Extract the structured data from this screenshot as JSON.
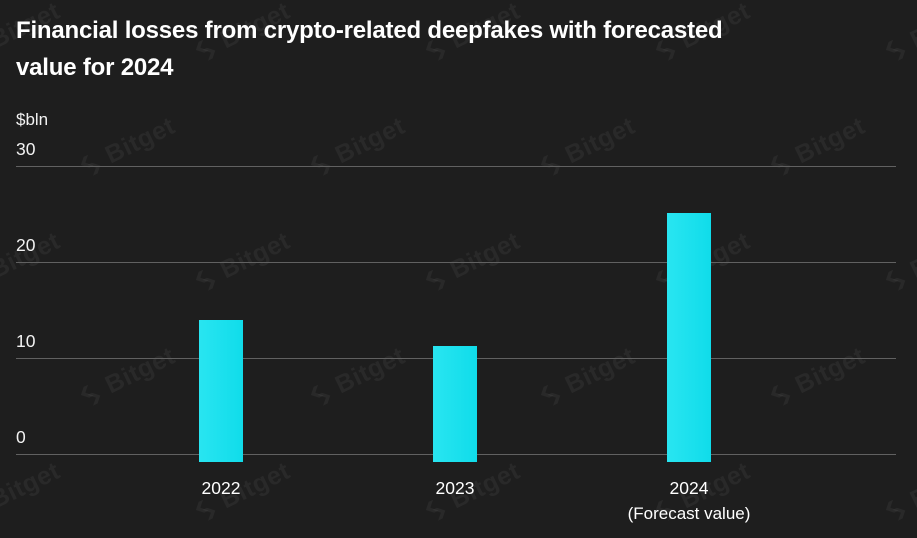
{
  "title": "Financial losses from crypto-related deepfakes with forecasted value for 2024",
  "y_axis": {
    "unit_label": "$bln"
  },
  "watermark": {
    "brand": "Bitget",
    "icon": "bitget-logo-icon"
  },
  "colors": {
    "background": "#1e1e1e",
    "bar_gradient_start": "#29e5f1",
    "bar_gradient_end": "#10dcea",
    "gridline": "#616161",
    "text": "#ffffff",
    "watermark": "rgba(255,255,255,0.05)"
  },
  "chart_data": {
    "type": "bar",
    "title": "Financial losses from crypto-related deepfakes with forecasted value for 2024",
    "categories": [
      "2022",
      "2023",
      "2024"
    ],
    "category_sublabels": [
      "",
      "",
      "(Forecast value)"
    ],
    "values": [
      14,
      11.3,
      25.1
    ],
    "xlabel": "",
    "ylabel": "$bln",
    "yticks": [
      0,
      10,
      20,
      30
    ],
    "ylim": [
      0,
      30
    ],
    "grid": "horizontal",
    "legend": "none",
    "bar_color": "#1de2ee"
  }
}
